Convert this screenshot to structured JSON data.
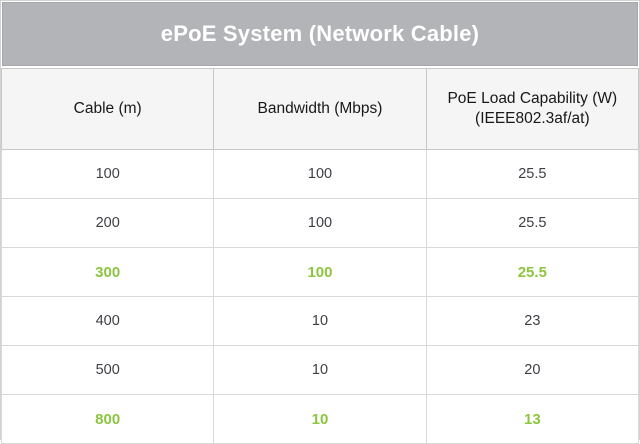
{
  "title_bar": {
    "text": "ePoE System (Network Cable)"
  },
  "colors": {
    "title_bar_bg": "#B2B4B7",
    "title_text": "#FFFFFF",
    "header_bg": "#F5F5F6",
    "body_text": "#3D3F45",
    "grid_line": "#D9D9D9",
    "highlight_green": "#8CC63F"
  },
  "chart_data": {
    "type": "table",
    "title": "ePoE System (Network Cable)",
    "columns": [
      "Cable (m)",
      "Bandwidth (Mbps)",
      "PoE Load Capability (W) (IEEE802.3af/at)"
    ],
    "rows": [
      [
        "100",
        "100",
        "25.5"
      ],
      [
        "200",
        "100",
        "25.5"
      ],
      [
        "300",
        "100",
        "25.5"
      ],
      [
        "400",
        "10",
        "23"
      ],
      [
        "500",
        "10",
        "20"
      ],
      [
        "800",
        "10",
        "13"
      ]
    ],
    "highlight_rows": [
      2,
      5
    ],
    "layout_hints": {
      "grid": true,
      "columns_equal_width": true,
      "highlight_style": "bold green text"
    }
  }
}
